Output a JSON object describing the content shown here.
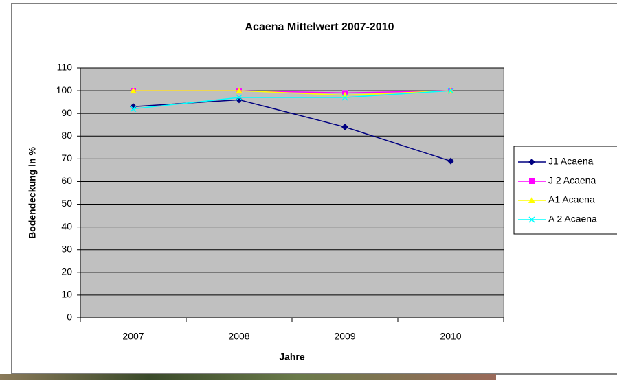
{
  "chart_data": {
    "type": "line",
    "title": "Acaena Mittelwert 2007-2010",
    "x_label": "Jahre",
    "y_label": "Bodendeckung in %",
    "categories": [
      "2007",
      "2008",
      "2009",
      "2010"
    ],
    "series": [
      {
        "name": "J1 Acaena",
        "color": "#000080",
        "marker": "diamond",
        "values": [
          93,
          96,
          84,
          69
        ]
      },
      {
        "name": "J 2 Acaena",
        "color": "#ff00ff",
        "marker": "square",
        "values": [
          100,
          100,
          99,
          100
        ]
      },
      {
        "name": "A1 Acaena",
        "color": "#ffff00",
        "marker": "triangle",
        "values": [
          100,
          100,
          98,
          100
        ]
      },
      {
        "name": "A 2 Acaena",
        "color": "#00ffff",
        "marker": "x",
        "values": [
          92,
          97,
          97,
          100
        ]
      }
    ],
    "ylim": [
      0,
      110
    ],
    "yticks": [
      0,
      10,
      20,
      30,
      40,
      50,
      60,
      70,
      80,
      90,
      100,
      110
    ],
    "grid": true,
    "legend": "right"
  }
}
